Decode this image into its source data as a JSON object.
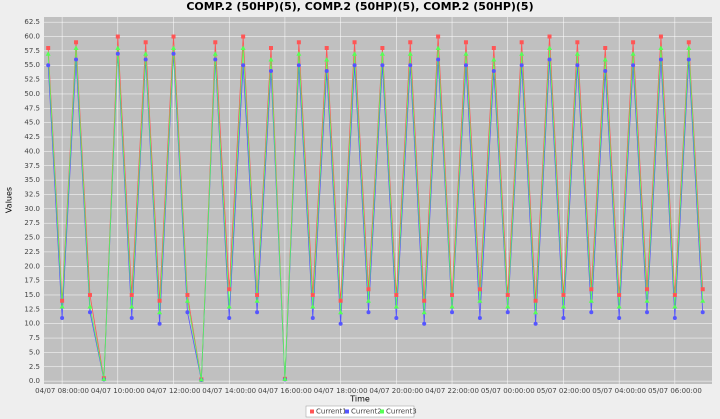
{
  "chart_data": {
    "type": "line",
    "title": "COMP.2 (50HP)(5), COMP.2 (50HP)(5), COMP.2 (50HP)(5)",
    "x_label": "Time",
    "y_label": "Values",
    "x": [
      "04/07 07:30:00",
      "04/07 08:00:00",
      "04/07 08:30:00",
      "04/07 09:00:00",
      "04/07 09:30:00",
      "04/07 10:00:00",
      "04/07 10:30:00",
      "04/07 11:00:00",
      "04/07 11:30:00",
      "04/07 12:00:00",
      "04/07 12:30:00",
      "04/07 13:00:00",
      "04/07 13:30:00",
      "04/07 14:00:00",
      "04/07 14:30:00",
      "04/07 15:00:00",
      "04/07 15:30:00",
      "04/07 16:00:00",
      "04/07 16:30:00",
      "04/07 17:00:00",
      "04/07 17:30:00",
      "04/07 18:00:00",
      "04/07 18:30:00",
      "04/07 19:00:00",
      "04/07 19:30:00",
      "04/07 20:00:00",
      "04/07 20:30:00",
      "04/07 21:00:00",
      "04/07 21:30:00",
      "04/07 22:00:00",
      "04/07 22:30:00",
      "04/07 23:00:00",
      "04/07 23:30:00",
      "05/07 00:00:00",
      "05/07 00:30:00",
      "05/07 01:00:00",
      "05/07 01:30:00",
      "05/07 02:00:00",
      "05/07 02:30:00",
      "05/07 03:00:00",
      "05/07 03:30:00",
      "05/07 04:00:00",
      "05/07 04:30:00",
      "05/07 05:00:00",
      "05/07 05:30:00",
      "05/07 06:00:00",
      "05/07 06:30:00",
      "05/07 07:00:00"
    ],
    "xlim": [
      "04/07 07:21:00",
      "05/07 07:20:00"
    ],
    "xticks": [
      "04/07 08:00:00",
      "04/07 10:00:00",
      "04/07 12:00:00",
      "04/07 14:00:00",
      "04/07 16:00:00",
      "04/07 18:00:00",
      "04/07 20:00:00",
      "04/07 22:00:00",
      "05/07 00:00:00",
      "05/07 02:00:00",
      "05/07 04:00:00",
      "05/07 06:00:00"
    ],
    "ylim": [
      -0.5,
      63.4
    ],
    "yticks": [
      {
        "value": 0,
        "label": "0.0"
      },
      2.5,
      {
        "value": 5,
        "label": "5.0"
      },
      7.5,
      {
        "value": 10,
        "label": "10.0"
      },
      12.5,
      {
        "value": 15,
        "label": "15.0"
      },
      17.5,
      {
        "value": 20,
        "label": "20.0"
      },
      22.5,
      {
        "value": 25,
        "label": "25.0"
      },
      27.5,
      {
        "value": 30,
        "label": "30.0"
      },
      32.5,
      {
        "value": 35,
        "label": "35.0"
      },
      37.5,
      {
        "value": 40,
        "label": "40.0"
      },
      42.5,
      {
        "value": 45,
        "label": "45.0"
      },
      47.5,
      {
        "value": 50,
        "label": "50.0"
      },
      52.5,
      {
        "value": 55,
        "label": "55.0"
      },
      57.5,
      {
        "value": 60,
        "label": "60.0"
      },
      62.5
    ],
    "grid": true,
    "series": [
      {
        "name": "Current1",
        "color": "#ff5555",
        "values": [
          58,
          14,
          59,
          15,
          0.5,
          60,
          15,
          59,
          14,
          60,
          15,
          0.3,
          59,
          16,
          60,
          15,
          58,
          0.4,
          59,
          15,
          58,
          14,
          59,
          16,
          58,
          15,
          59,
          14,
          60,
          15,
          59,
          16,
          58,
          15,
          59,
          14,
          60,
          15,
          59,
          16,
          58,
          15,
          59,
          16,
          60,
          15,
          59,
          16
        ]
      },
      {
        "name": "Current2",
        "color": "#5555ff",
        "values": [
          55,
          11,
          56,
          12,
          0.3,
          57,
          11,
          56,
          10,
          57,
          12,
          0.2,
          56,
          11,
          55,
          12,
          54,
          0.3,
          55,
          11,
          54,
          10,
          55,
          12,
          55,
          11,
          55,
          10,
          56,
          12,
          55,
          11,
          54,
          12,
          55,
          10,
          56,
          11,
          55,
          12,
          54,
          11,
          55,
          12,
          56,
          11,
          56,
          12
        ]
      },
      {
        "name": "Current3",
        "color": "#55ff55",
        "values": [
          57,
          13,
          58,
          13,
          0.4,
          58,
          13,
          57,
          12,
          58,
          14,
          0.3,
          57,
          13,
          58,
          14,
          56,
          0.4,
          57,
          13,
          56,
          12,
          57,
          14,
          57,
          13,
          57,
          12,
          58,
          13,
          57,
          14,
          56,
          13,
          57,
          12,
          58,
          13,
          57,
          14,
          56,
          13,
          57,
          14,
          58,
          13,
          58,
          14
        ]
      }
    ]
  }
}
